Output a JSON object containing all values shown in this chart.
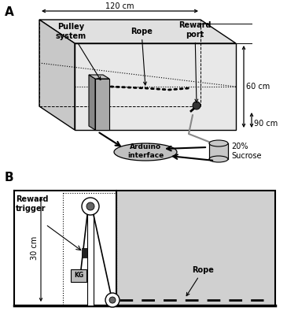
{
  "bg_color": "#ffffff",
  "panel_a_label": "A",
  "panel_b_label": "B",
  "dim_120": "120 cm",
  "dim_60": "60 cm",
  "dim_90": "90 cm",
  "dim_30": "30 cm",
  "label_pulley": "Pulley\nsystem",
  "label_rope_a": "Rope",
  "label_reward_port": "Reward\nport",
  "label_arduino": "Arduino\ninterface",
  "label_sucrose": "20%\nSucrose",
  "label_reward_trigger": "Reward\ntrigger",
  "label_rope_b": "Rope",
  "label_kg": "KG",
  "face_top": "#e0e0e0",
  "face_front": "#e8e8e8",
  "face_side": "#c8c8c8",
  "pulley_gray": "#909090",
  "arduino_gray": "#c0c0c0",
  "sucrose_gray": "#c8c8c8",
  "cage_gray": "#d0d0d0"
}
